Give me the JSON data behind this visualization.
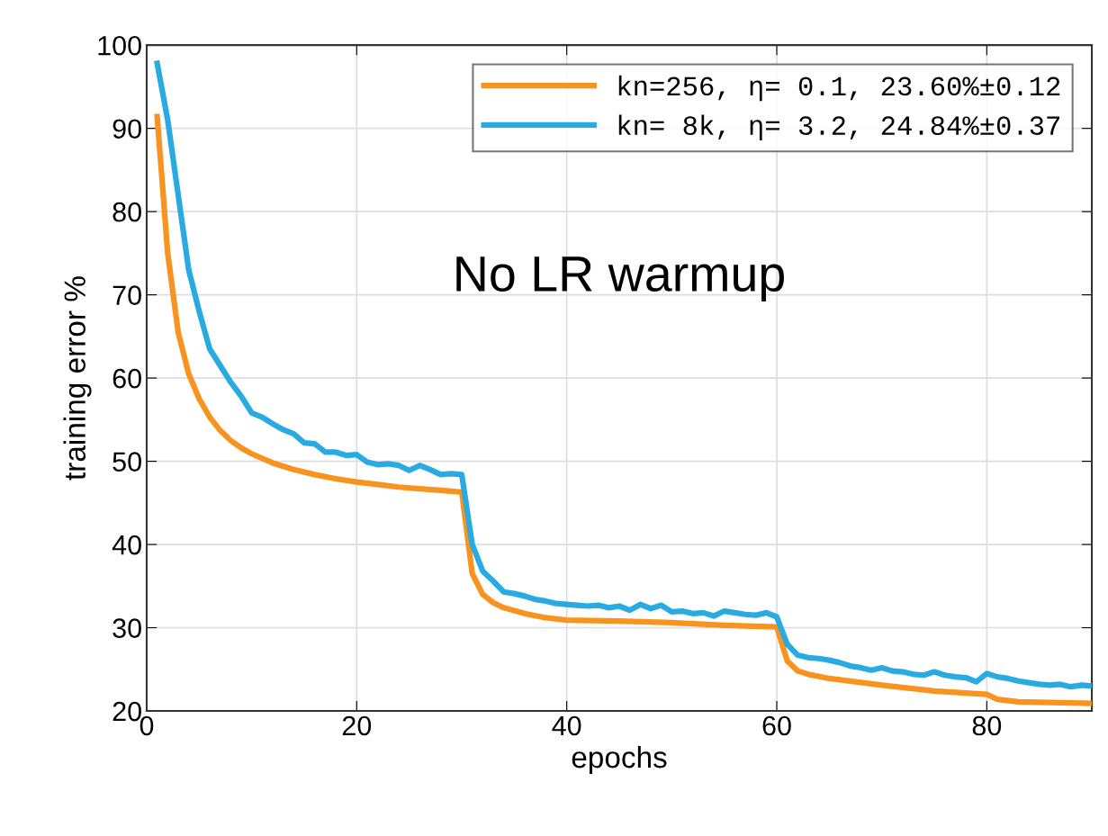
{
  "chart_data": {
    "type": "line",
    "xlabel": "epochs",
    "ylabel": "training error %",
    "annotations": [
      "No LR warmup"
    ],
    "xlim": [
      0,
      90
    ],
    "xticks": [
      0,
      20,
      40,
      60,
      80
    ],
    "ylim": [
      20,
      100
    ],
    "yticks": [
      20,
      30,
      40,
      50,
      60,
      70,
      80,
      90,
      100
    ],
    "grid": true,
    "legend": "top right",
    "marker": "none",
    "line_style": "solid",
    "series": [
      {
        "name": "kn=256, η= 0.1, 23.60%±0.12",
        "color": "#f7931e",
        "x": [
          1,
          2,
          3,
          4,
          5,
          6,
          7,
          8,
          9,
          10,
          12,
          14,
          16,
          18,
          20,
          22,
          24,
          26,
          28,
          30,
          31,
          32,
          33,
          34,
          36,
          38,
          40,
          45,
          50,
          55,
          60,
          61,
          62,
          63,
          65,
          70,
          75,
          80,
          81,
          83,
          90
        ],
        "values": [
          91.4,
          75,
          65.5,
          60.5,
          57.5,
          55.3,
          53.7,
          52.5,
          51.6,
          50.9,
          49.8,
          49.0,
          48.4,
          47.9,
          47.5,
          47.2,
          46.9,
          46.7,
          46.5,
          46.3,
          36.5,
          34,
          33,
          32.4,
          31.7,
          31.2,
          30.9,
          30.8,
          30.6,
          30.3,
          30.1,
          26,
          24.8,
          24.4,
          23.9,
          23.1,
          22.4,
          22.0,
          21.4,
          21.1,
          20.9
        ]
      },
      {
        "name": "kn= 8k, η= 3.2, 24.84%±0.37",
        "color": "#29abe2",
        "x": [
          1,
          2,
          3,
          4,
          5,
          6,
          7,
          8,
          9,
          10,
          11,
          12,
          13,
          14,
          15,
          16,
          17,
          18,
          19,
          20,
          21,
          22,
          23,
          24,
          25,
          26,
          27,
          28,
          29,
          30,
          31,
          32,
          33,
          34,
          35,
          36,
          37,
          38,
          39,
          40,
          41,
          42,
          43,
          44,
          45,
          46,
          47,
          48,
          49,
          50,
          51,
          52,
          53,
          54,
          55,
          56,
          57,
          58,
          59,
          60,
          61,
          62,
          63,
          64,
          65,
          66,
          67,
          68,
          69,
          70,
          71,
          72,
          73,
          74,
          75,
          76,
          77,
          78,
          79,
          80,
          81,
          82,
          83,
          84,
          85,
          86,
          87,
          88,
          89,
          90
        ],
        "values": [
          97.8,
          91,
          82,
          73,
          68,
          63.5,
          61.5,
          59.5,
          57.8,
          55.8,
          55.3,
          54.5,
          53.8,
          53.3,
          52.2,
          52.1,
          51.1,
          51.1,
          50.7,
          50.8,
          49.9,
          49.6,
          49.7,
          49.5,
          48.9,
          49.5,
          49.0,
          48.4,
          48.5,
          48.4,
          40,
          36.8,
          35.6,
          34.3,
          34.1,
          33.8,
          33.4,
          33.2,
          32.9,
          32.8,
          32.7,
          32.6,
          32.7,
          32.4,
          32.6,
          32.1,
          32.8,
          32.3,
          32.7,
          31.9,
          32.0,
          31.7,
          31.8,
          31.4,
          32.0,
          31.8,
          31.6,
          31.5,
          31.8,
          31.3,
          28.0,
          26.7,
          26.4,
          26.3,
          26.1,
          25.8,
          25.4,
          25.2,
          24.9,
          25.2,
          24.8,
          24.7,
          24.4,
          24.3,
          24.7,
          24.3,
          24.1,
          24.0,
          23.5,
          24.5,
          24.1,
          23.9,
          23.6,
          23.4,
          23.2,
          23.1,
          23.2,
          22.9,
          23.1,
          23.0
        ]
      }
    ]
  }
}
